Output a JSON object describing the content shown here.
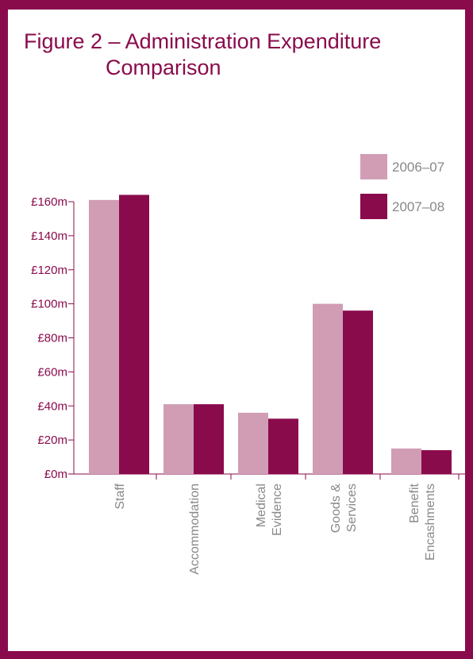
{
  "title_line1": "Figure 2 – Administration Expenditure",
  "title_line2": "Comparison",
  "colors": {
    "s2006": "#d09db5",
    "s2007": "#8a0b4c",
    "axis": "#8a0b4c",
    "frame": "#8a0b4c"
  },
  "chart_data": {
    "type": "bar",
    "title": "Figure 2 – Administration Expenditure Comparison",
    "xlabel": "",
    "ylabel": "",
    "ylim": [
      0,
      160
    ],
    "yticks": [
      "£0m",
      "£20m",
      "£40m",
      "£60m",
      "£80m",
      "£100m",
      "£120m",
      "£140m",
      "£160m"
    ],
    "categories": [
      [
        "Staff"
      ],
      [
        "Accommodation"
      ],
      [
        "Medical",
        "Evidence"
      ],
      [
        "Goods &",
        "Services"
      ],
      [
        "Benefit",
        "Encashments"
      ]
    ],
    "series": [
      {
        "name": "2006–07",
        "values": [
          161,
          41,
          36,
          100,
          15
        ]
      },
      {
        "name": "2007–08",
        "values": [
          164,
          41,
          32.5,
          96,
          14
        ]
      }
    ],
    "legend_position": "top-right",
    "grid": false
  }
}
